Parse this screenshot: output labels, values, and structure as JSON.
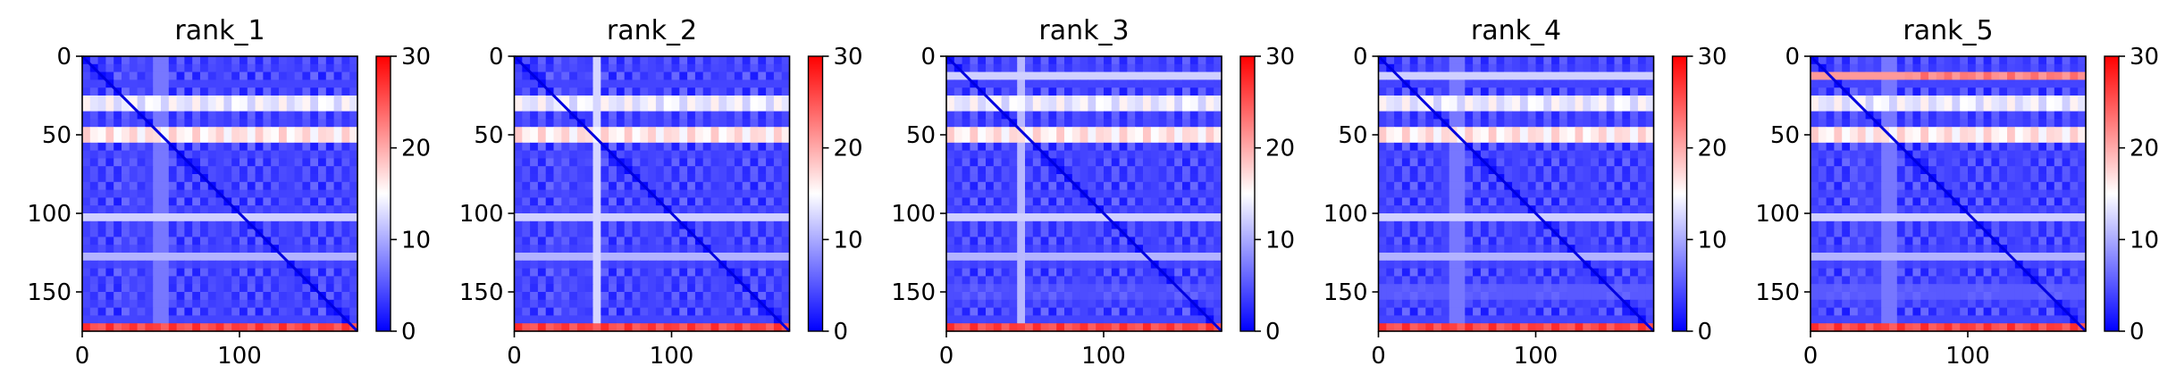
{
  "chart_data": [
    {
      "type": "heatmap",
      "title": "rank_1",
      "n": 175,
      "x_ticks": [
        0,
        100
      ],
      "y_ticks": [
        0,
        50,
        100,
        150
      ],
      "colorbar": {
        "min": 0,
        "max": 30,
        "ticks": [
          0,
          10,
          20,
          30
        ],
        "colors": [
          "#0000ff",
          "#ffffff",
          "#ff0000"
        ]
      },
      "bands_y": [
        [
          30,
          26
        ],
        [
          50,
          24
        ],
        [
          102,
          14
        ],
        [
          128,
          12
        ],
        [
          172,
          28
        ]
      ],
      "bands_x": [
        [
          30,
          8
        ],
        [
          50,
          14
        ]
      ],
      "hot_bands": [
        {
          "y": 30,
          "x0": 0,
          "x1": 175,
          "v": 24
        },
        {
          "y": 50,
          "x0": 0,
          "x1": 175,
          "v": 28
        },
        {
          "y": 172,
          "x0": 0,
          "x1": 175,
          "v": 28
        }
      ]
    },
    {
      "type": "heatmap",
      "title": "rank_2",
      "n": 175,
      "x_ticks": [
        0,
        100
      ],
      "y_ticks": [
        0,
        50,
        100,
        150
      ],
      "colorbar": {
        "min": 0,
        "max": 30,
        "ticks": [
          0,
          10,
          20,
          30
        ],
        "colors": [
          "#0000ff",
          "#ffffff",
          "#ff0000"
        ]
      },
      "bands_y": [
        [
          30,
          26
        ],
        [
          50,
          24
        ],
        [
          102,
          14
        ],
        [
          128,
          12
        ],
        [
          172,
          28
        ]
      ],
      "bands_x": [
        [
          30,
          8
        ],
        [
          52,
          14
        ]
      ],
      "hot_bands": [
        {
          "y": 30,
          "x0": 0,
          "x1": 175,
          "v": 24
        },
        {
          "y": 50,
          "x0": 0,
          "x1": 175,
          "v": 28
        },
        {
          "y": 172,
          "x0": 0,
          "x1": 175,
          "v": 28
        }
      ]
    },
    {
      "type": "heatmap",
      "title": "rank_3",
      "n": 175,
      "x_ticks": [
        0,
        100
      ],
      "y_ticks": [
        0,
        50,
        100,
        150
      ],
      "colorbar": {
        "min": 0,
        "max": 30,
        "ticks": [
          0,
          10,
          20,
          30
        ],
        "colors": [
          "#0000ff",
          "#ffffff",
          "#ff0000"
        ]
      },
      "bands_y": [
        [
          12,
          14
        ],
        [
          30,
          26
        ],
        [
          50,
          24
        ],
        [
          102,
          14
        ],
        [
          128,
          12
        ],
        [
          150,
          12
        ],
        [
          172,
          28
        ]
      ],
      "bands_x": [
        [
          48,
          12
        ]
      ],
      "hot_bands": [
        {
          "y": 30,
          "x0": 0,
          "x1": 175,
          "v": 24
        },
        {
          "y": 50,
          "x0": 0,
          "x1": 175,
          "v": 28
        },
        {
          "y": 172,
          "x0": 0,
          "x1": 175,
          "v": 28
        }
      ]
    },
    {
      "type": "heatmap",
      "title": "rank_4",
      "n": 175,
      "x_ticks": [
        0,
        100
      ],
      "y_ticks": [
        0,
        50,
        100,
        150
      ],
      "colorbar": {
        "min": 0,
        "max": 30,
        "ticks": [
          0,
          10,
          20,
          30
        ],
        "colors": [
          "#0000ff",
          "#ffffff",
          "#ff0000"
        ]
      },
      "bands_y": [
        [
          12,
          14
        ],
        [
          30,
          26
        ],
        [
          50,
          24
        ],
        [
          102,
          14
        ],
        [
          128,
          12
        ],
        [
          150,
          14
        ],
        [
          172,
          28
        ]
      ],
      "bands_x": [
        [
          50,
          14
        ]
      ],
      "hot_bands": [
        {
          "y": 30,
          "x0": 0,
          "x1": 175,
          "v": 24
        },
        {
          "y": 50,
          "x0": 0,
          "x1": 175,
          "v": 28
        },
        {
          "y": 172,
          "x0": 0,
          "x1": 175,
          "v": 28
        }
      ]
    },
    {
      "type": "heatmap",
      "title": "rank_5",
      "n": 175,
      "x_ticks": [
        0,
        100
      ],
      "y_ticks": [
        0,
        50,
        100,
        150
      ],
      "colorbar": {
        "min": 0,
        "max": 30,
        "ticks": [
          0,
          10,
          20,
          30
        ],
        "colors": [
          "#0000ff",
          "#ffffff",
          "#ff0000"
        ]
      },
      "bands_y": [
        [
          12,
          24
        ],
        [
          30,
          26
        ],
        [
          50,
          24
        ],
        [
          102,
          14
        ],
        [
          128,
          12
        ],
        [
          150,
          14
        ],
        [
          172,
          28
        ]
      ],
      "bands_x": [
        [
          30,
          8
        ],
        [
          50,
          14
        ]
      ],
      "hot_bands": [
        {
          "y": 12,
          "x0": 60,
          "x1": 175,
          "v": 24
        },
        {
          "y": 30,
          "x0": 0,
          "x1": 175,
          "v": 24
        },
        {
          "y": 50,
          "x0": 0,
          "x1": 175,
          "v": 28
        },
        {
          "y": 172,
          "x0": 0,
          "x1": 175,
          "v": 28
        }
      ]
    }
  ]
}
